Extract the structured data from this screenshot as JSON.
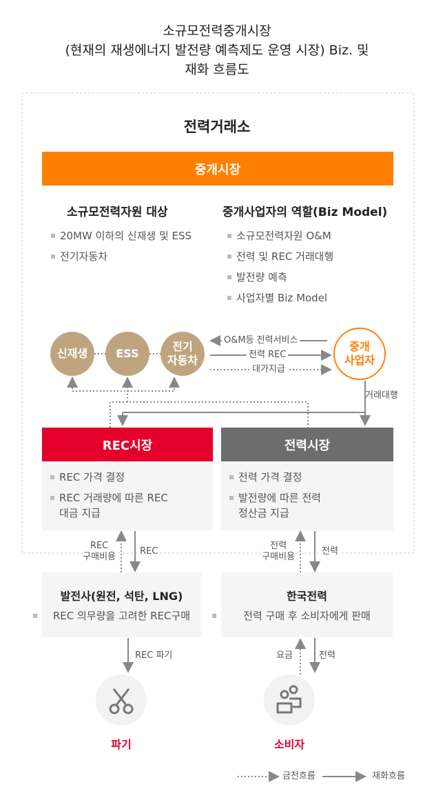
{
  "title": [
    "소규모전력중개시장",
    "(현재의 재생에너지 발전량 예측제도 운영 시장) Biz. 및",
    "재화 흐름도"
  ],
  "exchange": "전력거래소",
  "market_bar": "중개시장",
  "left_col": {
    "header": "소규모전력자원 대상",
    "items": [
      "20MW 이하의 신재생 및 ESS",
      "전기자동차"
    ]
  },
  "right_col": {
    "header": "중개사업자의 역할(Biz Model)",
    "items": [
      "소규모전력자원 O&M",
      "전력 및 REC 거래대행",
      "발전량 예측",
      "사업자별 Biz Model"
    ]
  },
  "resources": [
    "신재생",
    "ESS",
    "전기\n자동차"
  ],
  "broker": "중개\n사업자",
  "flows": {
    "om": "O&M등 전력서비스",
    "power_rec": "전력 REC",
    "payment": "대가지급",
    "trade": "거래대행"
  },
  "rec_market": {
    "title": "REC시장",
    "items": [
      "REC 가격 결정",
      "REC 거래량에 따른 REC\n대금 지급"
    ]
  },
  "power_market": {
    "title": "전력시장",
    "items": [
      "전력 가격 결정",
      "발전량에 따른 전력\n정산금 지급"
    ]
  },
  "mid_labels": {
    "rec_cost": "REC\n구매비용",
    "rec": "REC",
    "power_cost": "전력\n구매비용",
    "power": "전력"
  },
  "genco": {
    "title": "발전사(원전, 석탄, LNG)",
    "desc": "REC 의무량을 고려한 REC구매"
  },
  "kepco": {
    "title": "한국전력",
    "desc": "전력 구매 후 소비자에게 판매"
  },
  "bottom_labels": {
    "rec_discard": "REC 파기",
    "fee": "요금",
    "power": "전력"
  },
  "discard": {
    "label": "파기",
    "icon": "scissors-icon"
  },
  "consumer": {
    "label": "소비자",
    "icon": "users-icon"
  },
  "legend": {
    "money": "금전흐름",
    "goods": "재화흐름"
  },
  "colors": {
    "orange": "#ff7f00",
    "red": "#e4002b",
    "gray": "#6d6d6d",
    "tan": "#bfa57f"
  }
}
